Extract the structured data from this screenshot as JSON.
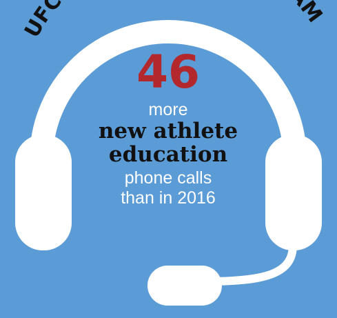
{
  "arc_title": "UFC ANTI-DOPING PROGRAM",
  "stat": {
    "number": "46",
    "lead": "more",
    "headline_line1": "new athlete",
    "headline_line2": "education",
    "sub_line1": "phone calls",
    "sub_line2": "than in 2016"
  },
  "colors": {
    "background": "#5b9bd6",
    "headset": "#ffffff",
    "number": "#b3282d",
    "headline": "#111111",
    "text": "#ffffff"
  },
  "icon": "headset-icon"
}
